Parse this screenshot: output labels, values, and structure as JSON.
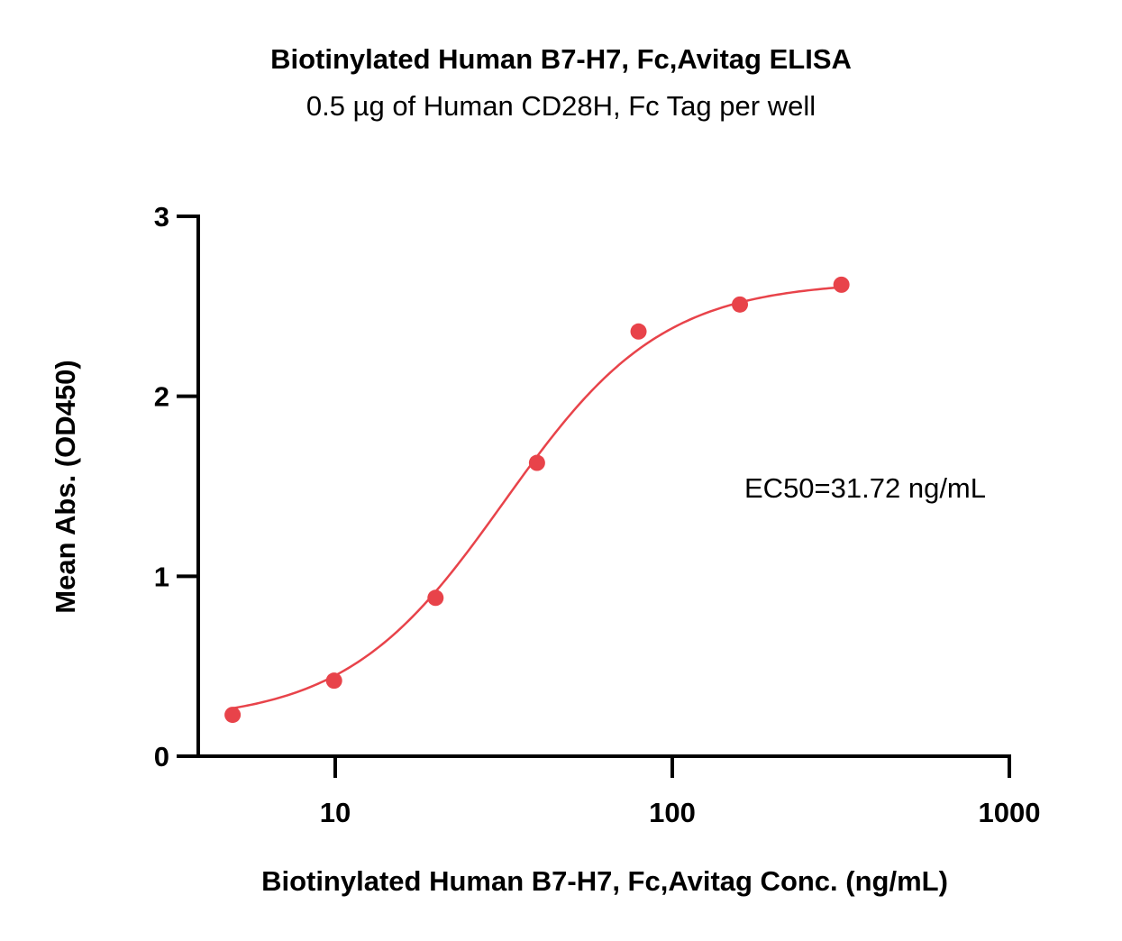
{
  "chart_data": {
    "type": "scatter",
    "title": "Biotinylated Human B7-H7, Fc,Avitag ELISA",
    "subtitle": "0.5 µg of Human CD28H, Fc Tag per well",
    "xlabel": "Biotinylated Human B7-H7, Fc,Avitag Conc. (ng/mL)",
    "ylabel": "Mean Abs. (OD450)",
    "xscale": "log",
    "xlim": [
      4,
      1000
    ],
    "ylim": [
      0,
      3
    ],
    "xticks": [
      10,
      100,
      1000
    ],
    "xtick_labels": [
      "10",
      "100",
      "1000"
    ],
    "yticks": [
      0,
      1,
      2,
      3
    ],
    "ytick_labels": [
      "0",
      "1",
      "2",
      "3"
    ],
    "grid": false,
    "color": "#e8434a",
    "x": [
      4.96,
      9.92,
      19.84,
      39.68,
      79.4,
      158.7,
      317.5
    ],
    "y": [
      0.23,
      0.42,
      0.88,
      1.63,
      2.36,
      2.51,
      2.62
    ],
    "fit": {
      "model": "4PL",
      "bottom": 0.19,
      "top": 2.64,
      "ec50": 31.72,
      "hill": 1.85
    },
    "annotation": "EC50=31.72 ng/mL"
  }
}
